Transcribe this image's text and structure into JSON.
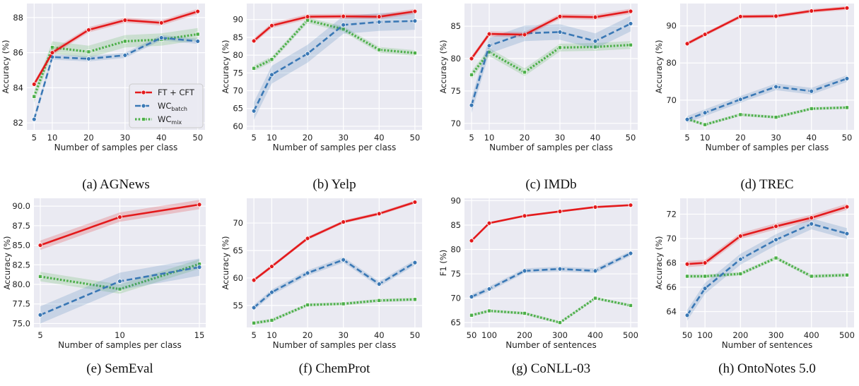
{
  "legend": {
    "entries": [
      {
        "label": "FT + CFT",
        "sub": "",
        "color": "#e31a1c",
        "style": "solid",
        "marker": "circle"
      },
      {
        "label": "WC",
        "sub": "batch",
        "color": "#3a78b5",
        "style": "dashed",
        "marker": "circle"
      },
      {
        "label": "WC",
        "sub": "mix",
        "color": "#4daf4a",
        "style": "dotted",
        "marker": "square"
      }
    ]
  },
  "chart_data": [
    {
      "type": "line",
      "caption": "(a) AGNews",
      "xlabel": "Number of samples per class",
      "ylabel": "Accuracy (%)",
      "x": [
        5,
        10,
        20,
        30,
        40,
        50
      ],
      "x_ticks": [
        "5",
        "10",
        "20",
        "30",
        "40",
        "50"
      ],
      "xlim": [
        3,
        52
      ],
      "ylim": [
        81.6,
        88.8
      ],
      "y_ticks": [
        82,
        84,
        86,
        88
      ],
      "y_tick_labels": [
        "82",
        "84",
        "86",
        "88"
      ],
      "grid": true,
      "legend_position": "lower-right",
      "series": [
        {
          "name": "FT + CFT",
          "values": [
            84.2,
            86.0,
            87.3,
            87.85,
            87.7,
            88.35
          ],
          "band": 0.15
        },
        {
          "name": "WCbatch",
          "values": [
            82.2,
            85.75,
            85.65,
            85.85,
            86.85,
            86.65
          ],
          "band": 0.15
        },
        {
          "name": "WCmix",
          "values": [
            83.5,
            86.3,
            86.05,
            86.65,
            86.75,
            87.05
          ],
          "band": 0.35
        }
      ]
    },
    {
      "type": "line",
      "caption": "(b) Yelp",
      "xlabel": "Number of samples per class",
      "ylabel": "Accuracy (%)",
      "x": [
        5,
        10,
        20,
        30,
        40,
        50
      ],
      "x_ticks": [
        "5",
        "10",
        "20",
        "30",
        "40",
        "50"
      ],
      "xlim": [
        3,
        52
      ],
      "ylim": [
        59,
        94.5
      ],
      "y_ticks": [
        60,
        65,
        70,
        75,
        80,
        85,
        90
      ],
      "y_tick_labels": [
        "60",
        "65",
        "70",
        "75",
        "80",
        "85",
        "90"
      ],
      "grid": true,
      "series": [
        {
          "name": "FT + CFT",
          "values": [
            84.0,
            88.3,
            90.8,
            90.9,
            90.8,
            92.3
          ],
          "band": 0.7
        },
        {
          "name": "WCbatch",
          "values": [
            64.3,
            74.5,
            80.4,
            88.5,
            89.3,
            89.6
          ],
          "band": 2.5
        },
        {
          "name": "WCmix",
          "values": [
            76.3,
            78.8,
            89.8,
            87.3,
            81.5,
            80.6
          ],
          "band": 0.8
        }
      ]
    },
    {
      "type": "line",
      "caption": "(c) IMDb",
      "xlabel": "Number of samples per class",
      "ylabel": "Accuracy (%)",
      "x": [
        5,
        10,
        20,
        30,
        40,
        50
      ],
      "x_ticks": [
        "5",
        "10",
        "20",
        "30",
        "40",
        "50"
      ],
      "xlim": [
        3,
        52
      ],
      "ylim": [
        69,
        88.5
      ],
      "y_ticks": [
        70,
        75,
        80,
        85
      ],
      "y_tick_labels": [
        "70",
        "75",
        "80",
        "85"
      ],
      "grid": true,
      "series": [
        {
          "name": "FT + CFT",
          "values": [
            80.0,
            83.8,
            83.7,
            86.5,
            86.4,
            87.3
          ],
          "band": 0.4
        },
        {
          "name": "WCbatch",
          "values": [
            72.8,
            82.0,
            83.9,
            84.1,
            82.7,
            85.4
          ],
          "band": 1.2
        },
        {
          "name": "WCmix",
          "values": [
            77.5,
            81.0,
            77.9,
            81.7,
            81.8,
            82.1
          ],
          "band": 0.6
        }
      ]
    },
    {
      "type": "line",
      "caption": "(d) TREC",
      "xlabel": "Number of samples per class",
      "ylabel": "Accuracy (%)",
      "x": [
        5,
        10,
        20,
        30,
        40,
        50
      ],
      "x_ticks": [
        "5",
        "10",
        "20",
        "30",
        "40",
        "50"
      ],
      "xlim": [
        3,
        52
      ],
      "ylim": [
        62,
        96
      ],
      "y_ticks": [
        70,
        80,
        90
      ],
      "y_tick_labels": [
        "70",
        "80",
        "90"
      ],
      "grid": true,
      "series": [
        {
          "name": "FT + CFT",
          "values": [
            85.2,
            87.7,
            92.5,
            92.6,
            94.0,
            94.8
          ],
          "band": 0.5
        },
        {
          "name": "WCbatch",
          "values": [
            64.8,
            66.6,
            70.2,
            73.6,
            72.4,
            75.8
          ],
          "band": 0.9
        },
        {
          "name": "WCmix",
          "values": [
            64.9,
            63.4,
            66.1,
            65.4,
            67.7,
            68.0
          ],
          "band": 0.4
        }
      ]
    },
    {
      "type": "line",
      "caption": "(e) SemEval",
      "xlabel": "Number of samples per class",
      "ylabel": "Accuracy (%)",
      "x": [
        5,
        10,
        15
      ],
      "x_ticks": [
        "5",
        "10",
        "15"
      ],
      "xlim": [
        4.6,
        15.4
      ],
      "ylim": [
        74.5,
        91.0
      ],
      "y_ticks": [
        75.0,
        77.5,
        80.0,
        82.5,
        85.0,
        87.5,
        90.0
      ],
      "y_tick_labels": [
        "75.0",
        "77.5",
        "80.0",
        "82.5",
        "85.0",
        "87.5",
        "90.0"
      ],
      "grid": true,
      "series": [
        {
          "name": "FT + CFT",
          "values": [
            85.0,
            88.6,
            90.2
          ],
          "band": 0.6
        },
        {
          "name": "WCbatch",
          "values": [
            76.1,
            80.4,
            82.2
          ],
          "band": 1.1
        },
        {
          "name": "WCmix",
          "values": [
            81.0,
            79.4,
            82.6
          ],
          "band": 0.6
        }
      ]
    },
    {
      "type": "line",
      "caption": "(f) ChemProt",
      "xlabel": "Number of samples per class",
      "ylabel": "Accuracy (%)",
      "x": [
        5,
        10,
        20,
        30,
        40,
        50
      ],
      "x_ticks": [
        "5",
        "10",
        "20",
        "30",
        "40",
        "50"
      ],
      "xlim": [
        3,
        52
      ],
      "ylim": [
        51,
        74.5
      ],
      "y_ticks": [
        55,
        60,
        65,
        70
      ],
      "y_tick_labels": [
        "55",
        "60",
        "65",
        "70"
      ],
      "grid": true,
      "series": [
        {
          "name": "FT + CFT",
          "values": [
            59.6,
            62.1,
            67.2,
            70.2,
            71.7,
            73.8
          ],
          "band": 0.3
        },
        {
          "name": "WCbatch",
          "values": [
            54.6,
            57.4,
            60.9,
            63.3,
            58.9,
            62.8
          ],
          "band": 0.5
        },
        {
          "name": "WCmix",
          "values": [
            51.8,
            52.3,
            55.1,
            55.3,
            55.9,
            56.1
          ],
          "band": 0.3
        }
      ]
    },
    {
      "type": "line",
      "caption": "(g) CoNLL-03",
      "xlabel": "Number of sentences",
      "ylabel": "F1 (%)",
      "x": [
        50,
        100,
        200,
        300,
        400,
        500
      ],
      "x_ticks": [
        "50",
        "100",
        "200",
        "300",
        "400",
        "500"
      ],
      "xlim": [
        30,
        520
      ],
      "ylim": [
        64,
        90.5
      ],
      "y_ticks": [
        65,
        70,
        75,
        80,
        85,
        90
      ],
      "y_tick_labels": [
        "65",
        "70",
        "75",
        "80",
        "85",
        "90"
      ],
      "grid": true,
      "series": [
        {
          "name": "FT + CFT",
          "values": [
            81.8,
            85.4,
            86.9,
            87.8,
            88.7,
            89.1
          ],
          "band": 0.2
        },
        {
          "name": "WCbatch",
          "values": [
            70.3,
            71.9,
            75.6,
            76.0,
            75.6,
            79.2
          ],
          "band": 0.5
        },
        {
          "name": "WCmix",
          "values": [
            66.5,
            67.4,
            66.9,
            65.0,
            70.0,
            68.5
          ],
          "band": 0.3
        }
      ]
    },
    {
      "type": "line",
      "caption": "(h) OntoNotes 5.0",
      "xlabel": "Number of sentences",
      "ylabel": "Accuracy (%)",
      "x": [
        50,
        100,
        200,
        300,
        400,
        500
      ],
      "x_ticks": [
        "50",
        "100",
        "200",
        "300",
        "400",
        "500"
      ],
      "xlim": [
        30,
        520
      ],
      "ylim": [
        62.7,
        73.3
      ],
      "y_ticks": [
        64,
        66,
        68,
        70,
        72
      ],
      "y_tick_labels": [
        "64",
        "66",
        "68",
        "70",
        "72"
      ],
      "grid": true,
      "series": [
        {
          "name": "FT + CFT",
          "values": [
            67.9,
            68.0,
            70.2,
            71.0,
            71.7,
            72.6
          ],
          "band": 0.25
        },
        {
          "name": "WCbatch",
          "values": [
            63.7,
            65.9,
            68.3,
            69.9,
            71.2,
            70.4
          ],
          "band": 0.45
        },
        {
          "name": "WCmix",
          "values": [
            66.9,
            66.9,
            67.1,
            68.4,
            66.9,
            67.0
          ],
          "band": 0.15
        }
      ]
    }
  ]
}
